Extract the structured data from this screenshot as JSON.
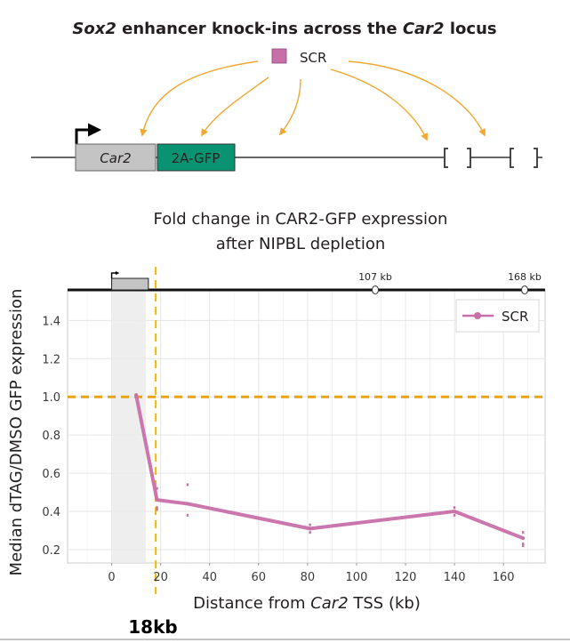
{
  "diagram": {
    "title_parts": [
      {
        "text": "Sox2",
        "italic": true
      },
      {
        "text": " enhancer knock-ins across the ",
        "italic": false
      },
      {
        "text": "Car2",
        "italic": true
      },
      {
        "text": " locus",
        "italic": false
      }
    ],
    "legend_label": "SCR",
    "gene_label": "Car2",
    "reporter_label": "2A-GFP",
    "insertion_sites_count": 5
  },
  "colors": {
    "scr": "#c86fa8",
    "threshold": "#e8a317",
    "marker_line": "#f5b800",
    "arrow": "#f0a830",
    "gfp_box": "#0a9370",
    "gene_box": "#c4c4c4",
    "shade": "#ebebeb"
  },
  "gene_track": {
    "markers": [
      {
        "label": "107 kb",
        "kb": 107
      },
      {
        "label": "168 kb",
        "kb": 168
      }
    ]
  },
  "annotation": {
    "label": "18kb",
    "kb": 18
  },
  "chart_data": {
    "type": "line",
    "title": "Fold change in CAR2-GFP expression",
    "subtitle": "after NIPBL depletion",
    "xlabel_parts": [
      {
        "text": "Distance from ",
        "italic": false
      },
      {
        "text": "Car2",
        "italic": true
      },
      {
        "text": " TSS (kb)",
        "italic": false
      }
    ],
    "ylabel": "Median dTAG/DMSO GFP expression",
    "xlim": [
      -18,
      177
    ],
    "ylim": [
      0.13,
      1.56
    ],
    "xticks": [
      0,
      20,
      40,
      60,
      80,
      100,
      120,
      140,
      160
    ],
    "yticks": [
      0.2,
      0.4,
      0.6,
      0.8,
      1.0,
      1.2,
      1.4
    ],
    "ytick_labels": [
      "0.2",
      "0.4",
      "0.6",
      "0.8",
      "1.0",
      "1.2",
      "1.4"
    ],
    "grid": true,
    "legend": {
      "position": "top-right",
      "entries": [
        "SCR"
      ]
    },
    "reference_line_y": 1.0,
    "reference_line_x": 18,
    "shaded_region_x": [
      0,
      14
    ],
    "series": [
      {
        "name": "SCR",
        "x": [
          10,
          18.5,
          31,
          81,
          140,
          168
        ],
        "y": [
          1.01,
          0.46,
          0.44,
          0.31,
          0.4,
          0.26
        ]
      }
    ],
    "replicates": [
      {
        "x": 18.5,
        "y": [
          0.52,
          0.41,
          0.42
        ]
      },
      {
        "x": 31,
        "y": [
          0.54,
          0.38
        ]
      },
      {
        "x": 81,
        "y": [
          0.33,
          0.29
        ]
      },
      {
        "x": 140,
        "y": [
          0.42,
          0.38
        ]
      },
      {
        "x": 168,
        "y": [
          0.29,
          0.23,
          0.22
        ]
      }
    ]
  }
}
